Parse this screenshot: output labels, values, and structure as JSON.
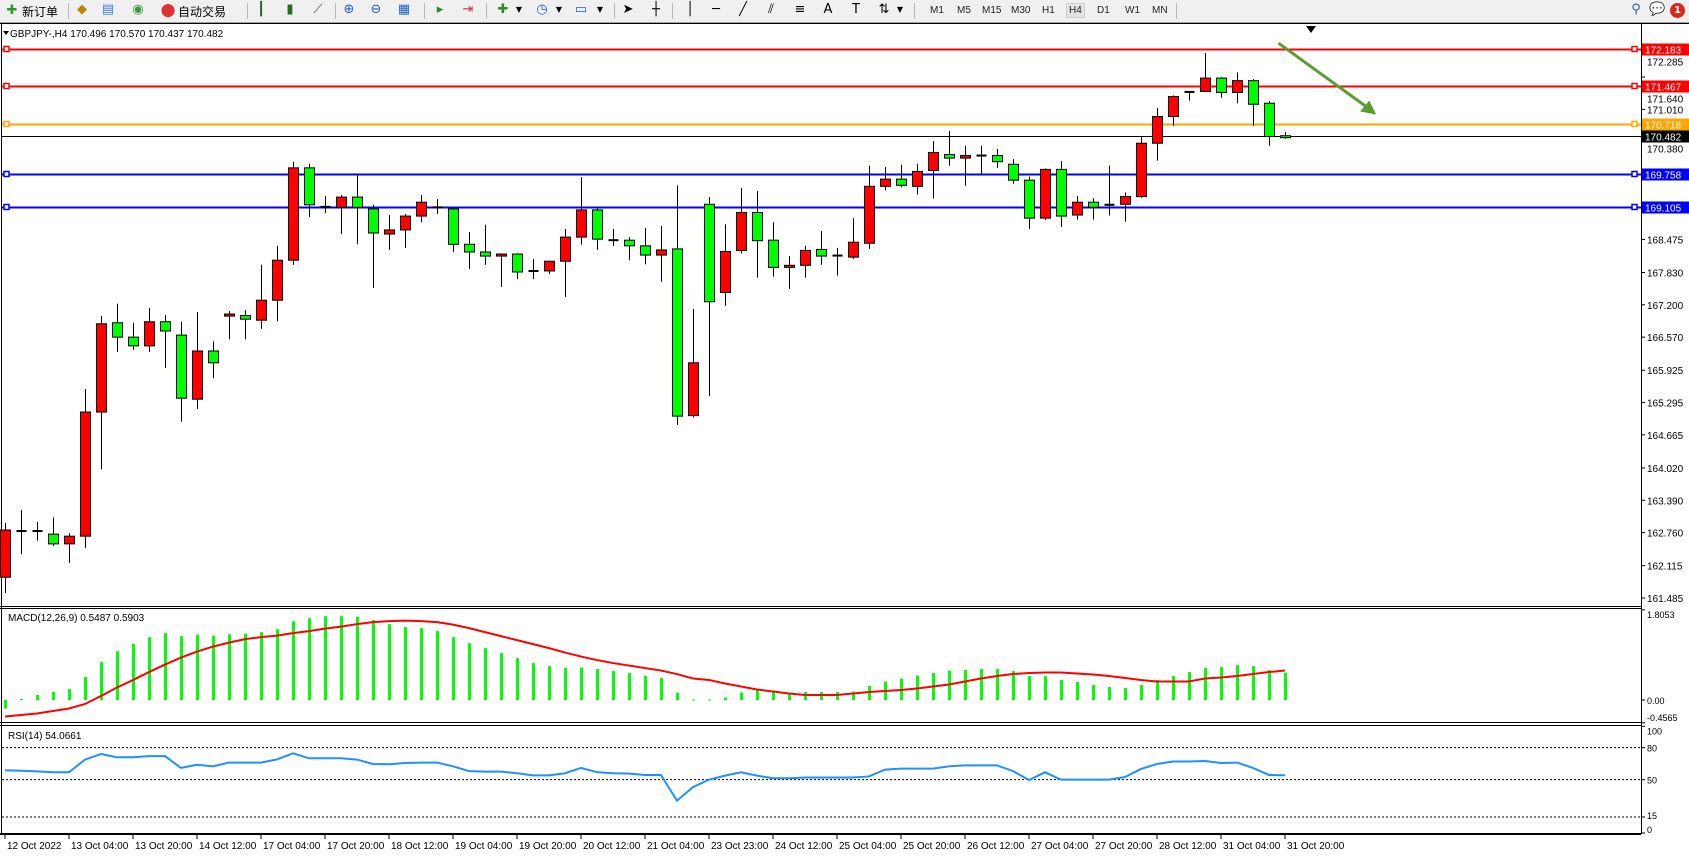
{
  "toolbar": {
    "new_order_label": "新订单",
    "auto_trading_label": "自动交易",
    "timeframes": [
      "M1",
      "M5",
      "M15",
      "M30",
      "H1",
      "H4",
      "D1",
      "W1",
      "MN"
    ],
    "active_timeframe": "H4",
    "notification_count": "1"
  },
  "chart": {
    "header": "GBPJPY-,H4  170.496 170.570 170.437 170.482",
    "macd_label": "MACD(12,26,9) 0.5487 0.5903",
    "rsi_label": "RSI(14) 54.0661"
  },
  "chart_data": {
    "type": "candlestick",
    "symbol": "GBPJPY-",
    "timeframe": "H4",
    "up_color": "#ff0000",
    "down_color": "#00ff00",
    "price_ylim": [
      161.485,
      172.285
    ],
    "price_ticks": [
      "172.285",
      "171.640",
      "171.010",
      "170.380",
      "168.475",
      "167.830",
      "167.200",
      "166.570",
      "165.925",
      "165.295",
      "164.665",
      "164.020",
      "163.390",
      "162.760",
      "162.115",
      "161.485"
    ],
    "time_labels": [
      "12 Oct 2022",
      "13 Oct 04:00",
      "13 Oct 20:00",
      "14 Oct 12:00",
      "17 Oct 04:00",
      "17 Oct 20:00",
      "18 Oct 12:00",
      "19 Oct 04:00",
      "19 Oct 20:00",
      "20 Oct 12:00",
      "21 Oct 04:00",
      "23 Oct 23:00",
      "24 Oct 12:00",
      "25 Oct 04:00",
      "25 Oct 20:00",
      "26 Oct 12:00",
      "27 Oct 04:00",
      "27 Oct 20:00",
      "28 Oct 12:00",
      "31 Oct 04:00",
      "31 Oct 20:00"
    ],
    "ohlc": [
      [
        161.89,
        162.95,
        161.58,
        162.81
      ],
      [
        162.79,
        163.2,
        162.34,
        162.79
      ],
      [
        162.79,
        162.97,
        162.6,
        162.79
      ],
      [
        162.73,
        163.06,
        162.5,
        162.54
      ],
      [
        162.54,
        162.75,
        162.17,
        162.69
      ],
      [
        162.69,
        165.56,
        162.46,
        165.11
      ],
      [
        165.11,
        166.98,
        163.99,
        166.83
      ],
      [
        166.85,
        167.22,
        166.28,
        166.57
      ],
      [
        166.57,
        166.85,
        166.32,
        166.4
      ],
      [
        166.4,
        167.14,
        166.28,
        166.87
      ],
      [
        166.87,
        167.0,
        165.97,
        166.69
      ],
      [
        166.61,
        166.87,
        164.92,
        165.38
      ],
      [
        165.36,
        167.06,
        165.17,
        166.3
      ],
      [
        166.3,
        166.49,
        165.77,
        166.07
      ],
      [
        166.98,
        167.08,
        166.53,
        167.02
      ],
      [
        166.99,
        167.1,
        166.53,
        166.92
      ],
      [
        166.9,
        167.98,
        166.73,
        167.29
      ],
      [
        167.29,
        168.35,
        166.88,
        168.07
      ],
      [
        168.07,
        169.99,
        167.98,
        169.87
      ],
      [
        169.87,
        169.95,
        168.91,
        169.15
      ],
      [
        169.11,
        169.32,
        168.99,
        169.11
      ],
      [
        169.1,
        169.34,
        168.58,
        169.3
      ],
      [
        169.3,
        169.73,
        168.38,
        169.1
      ],
      [
        169.07,
        169.15,
        167.53,
        168.6
      ],
      [
        168.58,
        168.95,
        168.27,
        168.66
      ],
      [
        168.66,
        168.97,
        168.31,
        168.93
      ],
      [
        168.93,
        169.34,
        168.81,
        169.2
      ],
      [
        169.1,
        169.26,
        168.97,
        169.1
      ],
      [
        169.07,
        169.1,
        168.23,
        168.38
      ],
      [
        168.38,
        168.62,
        167.9,
        168.23
      ],
      [
        168.23,
        168.76,
        167.98,
        168.15
      ],
      [
        168.15,
        168.19,
        167.55,
        168.19
      ],
      [
        168.19,
        168.21,
        167.7,
        167.84
      ],
      [
        167.86,
        168.09,
        167.7,
        167.86
      ],
      [
        167.86,
        168.05,
        167.8,
        168.05
      ],
      [
        168.05,
        168.68,
        167.35,
        168.52
      ],
      [
        168.52,
        169.69,
        168.37,
        169.05
      ],
      [
        169.05,
        169.1,
        168.27,
        168.48
      ],
      [
        168.46,
        168.68,
        168.35,
        168.46
      ],
      [
        168.46,
        168.52,
        168.07,
        168.35
      ],
      [
        168.35,
        168.7,
        167.99,
        168.17
      ],
      [
        168.17,
        168.74,
        167.65,
        168.27
      ],
      [
        168.29,
        169.53,
        164.86,
        165.03
      ],
      [
        165.04,
        167.12,
        165.0,
        166.07
      ],
      [
        169.16,
        169.3,
        165.42,
        167.26
      ],
      [
        167.44,
        168.77,
        167.18,
        168.24
      ],
      [
        168.26,
        169.48,
        168.2,
        169.0
      ],
      [
        169.0,
        169.42,
        167.73,
        168.45
      ],
      [
        168.46,
        168.81,
        167.75,
        167.93
      ],
      [
        167.93,
        168.15,
        167.51,
        167.97
      ],
      [
        167.97,
        168.35,
        167.73,
        168.26
      ],
      [
        168.28,
        168.64,
        167.98,
        168.15
      ],
      [
        168.16,
        168.31,
        167.77,
        168.16
      ],
      [
        168.13,
        168.89,
        168.09,
        168.42
      ],
      [
        168.4,
        169.91,
        168.29,
        169.51
      ],
      [
        169.51,
        169.89,
        169.43,
        169.65
      ],
      [
        169.65,
        169.93,
        169.49,
        169.53
      ],
      [
        169.51,
        169.95,
        169.35,
        169.8
      ],
      [
        169.82,
        170.39,
        169.27,
        170.17
      ],
      [
        170.13,
        170.59,
        169.91,
        170.06
      ],
      [
        170.06,
        170.3,
        169.52,
        170.11
      ],
      [
        170.11,
        170.3,
        169.76,
        170.11
      ],
      [
        170.11,
        170.24,
        169.87,
        169.99
      ],
      [
        169.94,
        170.04,
        169.56,
        169.63
      ],
      [
        169.63,
        169.7,
        168.68,
        168.89
      ],
      [
        168.89,
        169.86,
        168.85,
        169.84
      ],
      [
        169.84,
        170.0,
        168.72,
        168.93
      ],
      [
        168.95,
        169.32,
        168.86,
        169.2
      ],
      [
        169.2,
        169.28,
        168.86,
        169.1
      ],
      [
        169.15,
        169.91,
        168.94,
        169.15
      ],
      [
        169.16,
        169.39,
        168.82,
        169.31
      ],
      [
        169.31,
        170.47,
        169.28,
        170.35
      ],
      [
        170.35,
        171.04,
        170.01,
        170.87
      ],
      [
        170.87,
        171.28,
        170.69,
        171.26
      ],
      [
        171.35,
        171.35,
        171.18,
        171.35
      ],
      [
        171.36,
        172.11,
        171.36,
        171.62
      ],
      [
        171.62,
        171.64,
        171.24,
        171.34
      ],
      [
        171.34,
        171.73,
        171.13,
        171.57
      ],
      [
        171.57,
        171.6,
        170.69,
        171.11
      ],
      [
        171.13,
        171.17,
        170.3,
        170.48
      ],
      [
        170.496,
        170.57,
        170.437,
        170.482
      ]
    ],
    "levels": [
      {
        "price": "172.183",
        "color": "#ff0000"
      },
      {
        "price": "171.467",
        "color": "#ff0000"
      },
      {
        "price": "170.718",
        "color": "#ffa500"
      },
      {
        "price": "170.482",
        "color": "#000000"
      },
      {
        "price": "169.758",
        "color": "#0000ff"
      },
      {
        "price": "169.105",
        "color": "#0000ff"
      }
    ],
    "trend_arrow": {
      "color": "#5a9e32",
      "from": {
        "candle": 79.6,
        "price": 172.3
      },
      "to": {
        "candle": 85.7,
        "price": 170.91
      }
    },
    "macd": {
      "ylim": [
        -0.4565,
        1.8053
      ],
      "ticks": [
        "1.8053",
        "0.00",
        "-0.4565"
      ],
      "histogram_color": "#00ff00",
      "signal_color": "#ff0000",
      "histogram": [
        -0.17,
        0.02,
        0.1,
        0.16,
        0.22,
        0.46,
        0.76,
        0.98,
        1.13,
        1.26,
        1.34,
        1.28,
        1.31,
        1.29,
        1.32,
        1.33,
        1.36,
        1.42,
        1.58,
        1.64,
        1.68,
        1.68,
        1.67,
        1.6,
        1.52,
        1.46,
        1.44,
        1.38,
        1.26,
        1.14,
        1.04,
        0.94,
        0.84,
        0.74,
        0.68,
        0.64,
        0.65,
        0.62,
        0.58,
        0.54,
        0.48,
        0.44,
        0.14,
        0.01,
        0.01,
        0.05,
        0.15,
        0.21,
        0.17,
        0.14,
        0.16,
        0.16,
        0.16,
        0.17,
        0.28,
        0.37,
        0.43,
        0.49,
        0.54,
        0.59,
        0.6,
        0.62,
        0.62,
        0.58,
        0.48,
        0.48,
        0.4,
        0.36,
        0.3,
        0.26,
        0.24,
        0.3,
        0.4,
        0.48,
        0.56,
        0.64,
        0.66,
        0.7,
        0.68,
        0.6,
        0.5487
      ],
      "signal": [
        -0.33,
        -0.3,
        -0.27,
        -0.22,
        -0.17,
        -0.08,
        0.08,
        0.25,
        0.4,
        0.56,
        0.71,
        0.85,
        0.97,
        1.07,
        1.15,
        1.22,
        1.26,
        1.29,
        1.34,
        1.38,
        1.43,
        1.47,
        1.52,
        1.56,
        1.58,
        1.59,
        1.58,
        1.56,
        1.51,
        1.44,
        1.36,
        1.28,
        1.2,
        1.12,
        1.04,
        0.95,
        0.87,
        0.8,
        0.74,
        0.69,
        0.64,
        0.59,
        0.52,
        0.43,
        0.4,
        0.33,
        0.27,
        0.21,
        0.17,
        0.13,
        0.1,
        0.1,
        0.1,
        0.13,
        0.16,
        0.18,
        0.2,
        0.23,
        0.27,
        0.31,
        0.37,
        0.43,
        0.48,
        0.52,
        0.54,
        0.55,
        0.55,
        0.53,
        0.51,
        0.48,
        0.44,
        0.4,
        0.37,
        0.37,
        0.37,
        0.43,
        0.45,
        0.48,
        0.52,
        0.56,
        0.5903
      ]
    },
    "rsi": {
      "ylim": [
        0,
        100
      ],
      "ticks": [
        "100",
        "80",
        "50",
        "15",
        "0"
      ],
      "levels": [
        80,
        50,
        15
      ],
      "color": "#1e90ff",
      "values": [
        58.8,
        58.3,
        57.8,
        56.9,
        56.9,
        68.8,
        74,
        71,
        71,
        72,
        72,
        61,
        64,
        62.5,
        66,
        66,
        66,
        69,
        74.7,
        70,
        70,
        70,
        68.8,
        64.7,
        64.4,
        65.6,
        66,
        66,
        62.5,
        58,
        57.5,
        57.5,
        56,
        54,
        54,
        56,
        61,
        57,
        56,
        55.6,
        54.4,
        54.4,
        30.3,
        43,
        50,
        53.8,
        56.9,
        53.8,
        51.3,
        51.3,
        52,
        52,
        52,
        52,
        53,
        59.4,
        60.3,
        60.3,
        60.3,
        62.5,
        63.4,
        63.4,
        63.4,
        58,
        49.7,
        56.9,
        50,
        50,
        50,
        50,
        52.5,
        60,
        64.7,
        67,
        67,
        67.5,
        65.6,
        66,
        61,
        54.4,
        54.0661
      ]
    }
  }
}
